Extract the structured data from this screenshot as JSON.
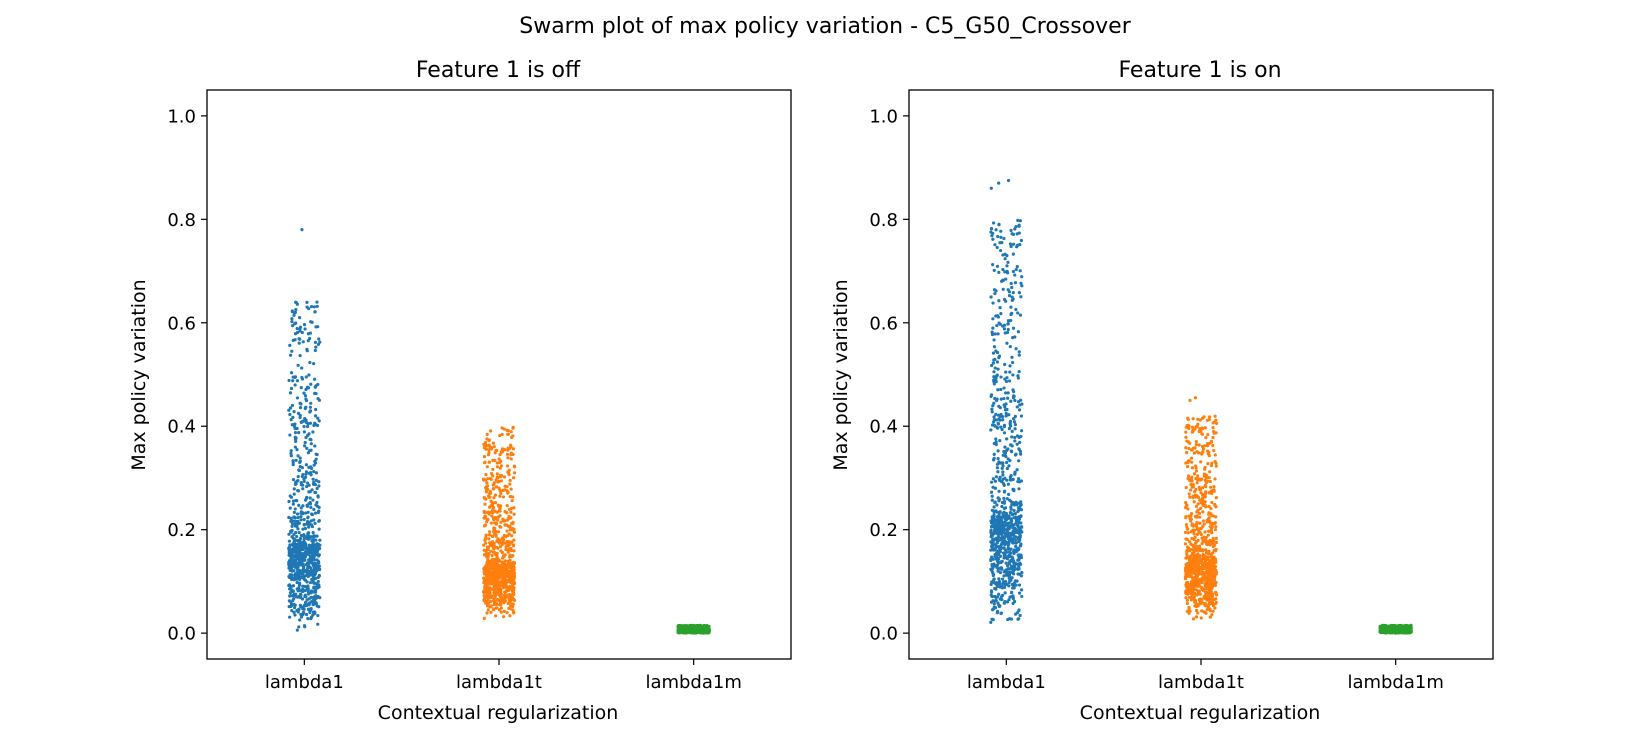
{
  "figure": {
    "suptitle": "Swarm plot of max policy variation - C5_G50_Crossover"
  },
  "chart_data": [
    {
      "type": "scatter",
      "subtype": "strip",
      "title": "Feature 1 is off",
      "xlabel": "Contextual regularization",
      "ylabel": "Max policy variation",
      "ylim": [
        -0.05,
        1.05
      ],
      "yticks": [
        "0.0",
        "0.2",
        "0.4",
        "0.6",
        "0.8",
        "1.0"
      ],
      "categories": [
        "lambda1",
        "lambda1t",
        "lambda1m"
      ],
      "colors": [
        "#1f77b4",
        "#ff7f0e",
        "#2ca02c"
      ],
      "series": [
        {
          "category": "lambda1",
          "n": 900,
          "min": 0.005,
          "max": 0.64,
          "median": 0.17,
          "outliers": [
            0.78
          ]
        },
        {
          "category": "lambda1t",
          "n": 900,
          "min": 0.025,
          "max": 0.4,
          "median": 0.13,
          "outliers": []
        },
        {
          "category": "lambda1m",
          "n": 900,
          "min": 0.0,
          "max": 0.015,
          "median": 0.004,
          "outliers": []
        }
      ]
    },
    {
      "type": "scatter",
      "subtype": "strip",
      "title": "Feature 1 is on",
      "xlabel": "Contextual regularization",
      "ylabel": "Max policy variation",
      "ylim": [
        -0.05,
        1.05
      ],
      "yticks": [
        "0.0",
        "0.2",
        "0.4",
        "0.6",
        "0.8",
        "1.0"
      ],
      "categories": [
        "lambda1",
        "lambda1t",
        "lambda1m"
      ],
      "colors": [
        "#1f77b4",
        "#ff7f0e",
        "#2ca02c"
      ],
      "series": [
        {
          "category": "lambda1",
          "n": 900,
          "min": 0.015,
          "max": 0.8,
          "median": 0.22,
          "outliers": [
            0.86,
            0.87,
            0.875
          ]
        },
        {
          "category": "lambda1t",
          "n": 900,
          "min": 0.025,
          "max": 0.42,
          "median": 0.14,
          "outliers": [
            0.45,
            0.455
          ]
        },
        {
          "category": "lambda1m",
          "n": 900,
          "min": 0.0,
          "max": 0.015,
          "median": 0.004,
          "outliers": []
        }
      ]
    }
  ]
}
